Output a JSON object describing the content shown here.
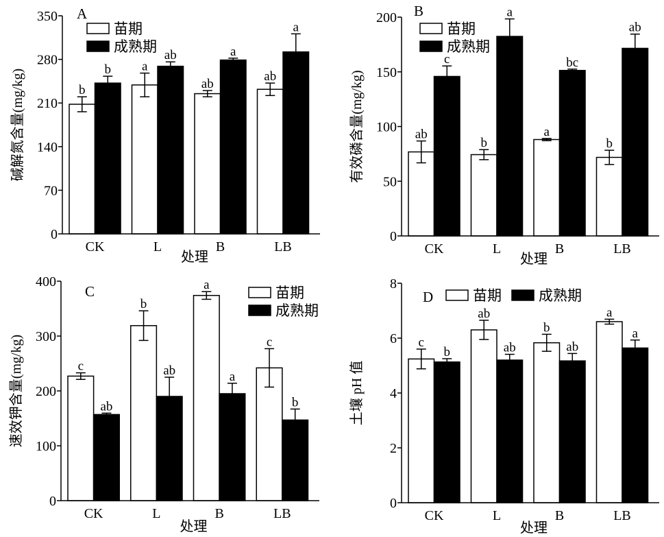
{
  "chart_data": [
    {
      "type": "bar",
      "panel_label": "A",
      "title": "",
      "xlabel": "处理",
      "ylabel": "碱解氮含量(mg/kg)",
      "ylim": [
        0,
        350
      ],
      "yticks": [
        0,
        70,
        140,
        210,
        280,
        350
      ],
      "categories": [
        "CK",
        "L",
        "B",
        "LB"
      ],
      "legend_placement": "top-left",
      "series": [
        {
          "name": "苗期",
          "color": "#ffffff",
          "values": [
            208,
            239,
            225,
            232
          ],
          "errors": [
            12,
            19,
            5,
            10
          ],
          "letters": [
            "b",
            "a",
            "ab",
            "ab"
          ]
        },
        {
          "name": "成熟期",
          "color": "#000000",
          "values": [
            242,
            269,
            279,
            292
          ],
          "errors": [
            11,
            7,
            3,
            29
          ],
          "letters": [
            "b",
            "ab",
            "a",
            "a"
          ]
        }
      ]
    },
    {
      "type": "bar",
      "panel_label": "B",
      "title": "",
      "xlabel": "处理",
      "ylabel": "有效磷含量(mg/kg)",
      "ylim": [
        0,
        200
      ],
      "yticks": [
        0,
        50,
        100,
        150,
        200
      ],
      "categories": [
        "CK",
        "L",
        "B",
        "LB"
      ],
      "legend_placement": "top-left",
      "series": [
        {
          "name": "苗期",
          "color": "#ffffff",
          "values": [
            76.8,
            74.3,
            88.1,
            71.8
          ],
          "errors": [
            10,
            4.6,
            1,
            6.5
          ],
          "letters": [
            "ab",
            "b",
            "a",
            "b"
          ]
        },
        {
          "name": "成熟期",
          "color": "#000000",
          "values": [
            145.8,
            182.4,
            151.3,
            171.5
          ],
          "errors": [
            9.6,
            16,
            1.2,
            13
          ],
          "letters": [
            "c",
            "a",
            "bc",
            "ab"
          ]
        }
      ]
    },
    {
      "type": "bar",
      "panel_label": "C",
      "title": "",
      "xlabel": "处理",
      "ylabel": "速效钾含量(mg/kg)",
      "ylim": [
        0,
        400
      ],
      "yticks": [
        0,
        100,
        200,
        300,
        400
      ],
      "categories": [
        "CK",
        "L",
        "B",
        "LB"
      ],
      "legend_placement": "top-right",
      "series": [
        {
          "name": "苗期",
          "color": "#ffffff",
          "values": [
            227,
            319,
            374,
            242
          ],
          "errors": [
            6,
            27,
            7,
            35
          ],
          "letters": [
            "c",
            "b",
            "a",
            "c"
          ]
        },
        {
          "name": "成熟期",
          "color": "#000000",
          "values": [
            157,
            190,
            195,
            147
          ],
          "errors": [
            2.5,
            35,
            19,
            20
          ],
          "letters": [
            "ab",
            "ab",
            "a",
            "b"
          ]
        }
      ]
    },
    {
      "type": "bar",
      "panel_label": "D",
      "title": "",
      "xlabel": "处理",
      "ylabel": "土壤 pH 值",
      "ylim": [
        0,
        8
      ],
      "yticks": [
        0,
        2,
        4,
        6,
        8
      ],
      "categories": [
        "CK",
        "L",
        "B",
        "LB"
      ],
      "legend_placement": "top",
      "series": [
        {
          "name": "苗期",
          "color": "#ffffff",
          "values": [
            5.24,
            6.3,
            5.83,
            6.6
          ],
          "errors": [
            0.36,
            0.35,
            0.31,
            0.09
          ],
          "letters": [
            "c",
            "ab",
            "b",
            "a"
          ]
        },
        {
          "name": "成熟期",
          "color": "#000000",
          "values": [
            5.13,
            5.2,
            5.17,
            5.64
          ],
          "errors": [
            0.12,
            0.21,
            0.27,
            0.29
          ],
          "letters": [
            "b",
            "ab",
            "ab",
            "a"
          ]
        }
      ]
    }
  ]
}
